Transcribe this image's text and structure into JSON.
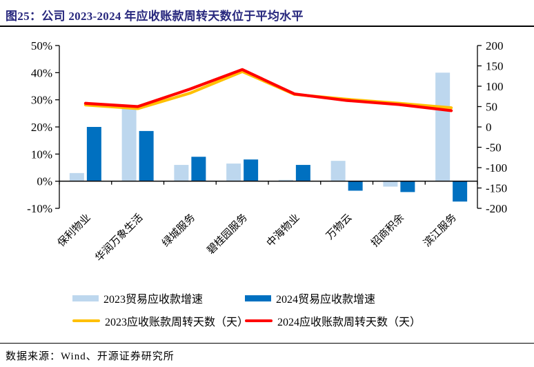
{
  "title": "图25：公司 2023-2024 年应收账款周转天数位于平均水平",
  "source": "数据来源：Wind、开源证券研究所",
  "colors": {
    "title_text": "#28287E",
    "bar_2023": "#BDD7EE",
    "bar_2024": "#0070C0",
    "line_2023": "#FFC000",
    "line_2024": "#FF0000",
    "axis": "#000000"
  },
  "legend": [
    {
      "type": "bar",
      "color_key": "bar_2023",
      "label": "2023贸易应收款增速"
    },
    {
      "type": "bar",
      "color_key": "bar_2024",
      "label": "2024贸易应收款增速"
    },
    {
      "type": "line",
      "color_key": "line_2023",
      "label": "2023应收账款周转天数（天）"
    },
    {
      "type": "line",
      "color_key": "line_2024",
      "label": "2024应收账款周转天数（天）"
    }
  ],
  "chart_data": {
    "type": "combo-bar-line",
    "categories": [
      "保利物业",
      "华润万象生活",
      "绿城服务",
      "碧桂园服务",
      "中海物业",
      "万物云",
      "招商积余",
      "滨江服务"
    ],
    "bar_series": [
      {
        "name": "2023贸易应收款增速",
        "axis": "left",
        "unit": "%",
        "color_key": "bar_2023",
        "values": [
          3,
          27,
          6,
          6.5,
          0.5,
          7.5,
          -2,
          40
        ]
      },
      {
        "name": "2024贸易应收款增速",
        "axis": "left",
        "unit": "%",
        "color_key": "bar_2024",
        "values": [
          20,
          18.5,
          9,
          8,
          6,
          -3.5,
          -4,
          -7.5
        ]
      }
    ],
    "line_series": [
      {
        "name": "2023应收账款周转天数（天）",
        "axis": "right",
        "unit": "天",
        "color_key": "line_2023",
        "values": [
          54,
          45,
          83,
          136,
          80,
          68,
          58,
          47
        ]
      },
      {
        "name": "2024应收账款周转天数（天）",
        "axis": "right",
        "unit": "天",
        "color_key": "line_2024",
        "values": [
          58,
          50,
          93,
          141,
          81,
          65,
          55,
          40
        ]
      }
    ],
    "left_axis": {
      "min": -10,
      "max": 50,
      "step": 10,
      "format": "percent",
      "ticks": [
        "50%",
        "40%",
        "30%",
        "20%",
        "10%",
        "0%",
        "-10%"
      ]
    },
    "right_axis": {
      "min": -200,
      "max": 200,
      "step": 50,
      "format": "number",
      "ticks": [
        "200",
        "150",
        "100",
        "50",
        "0",
        "-50",
        "-100",
        "-150",
        "-200"
      ]
    },
    "grid": false,
    "legend_position": "bottom",
    "x_label_rotation": -45
  }
}
